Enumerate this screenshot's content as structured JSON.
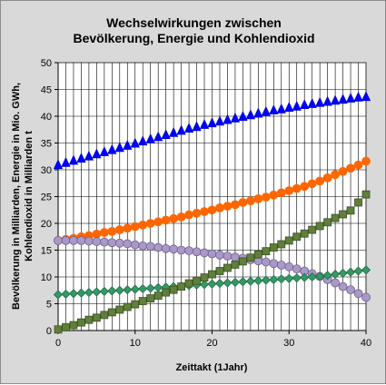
{
  "chart_data": {
    "type": "scatter",
    "title_lines": [
      "Wechselwirkungen zwischen",
      "Bevölkerung, Energie und Kohlendioxid"
    ],
    "xlabel": "Zeittakt (1Jahr)",
    "ylabel_lines": [
      "Bevölkerung in Milliarden, Energie in Mio. GWh,",
      "Kohlendioxid in Milliarden t"
    ],
    "xlim": [
      0,
      40
    ],
    "ylim": [
      0,
      50
    ],
    "xticks": [
      0,
      10,
      20,
      30,
      40
    ],
    "yticks": [
      0,
      5,
      10,
      15,
      20,
      25,
      30,
      35,
      40,
      45,
      50
    ],
    "grid": true,
    "legend": "none",
    "x": {
      "start": 0,
      "end": 40,
      "step": 1
    },
    "series": [
      {
        "marker": "triangle",
        "color": "#0000ff",
        "stroke": "#0000cc",
        "values": [
          30.9,
          31.3,
          31.7,
          32.1,
          32.5,
          32.9,
          33.3,
          33.7,
          34.1,
          34.5,
          34.9,
          35.3,
          35.7,
          36.1,
          36.5,
          36.9,
          37.3,
          37.7,
          38.0,
          38.4,
          38.7,
          39.0,
          39.3,
          39.6,
          39.9,
          40.2,
          40.5,
          40.8,
          41.1,
          41.3,
          41.6,
          41.8,
          42.1,
          42.3,
          42.5,
          42.7,
          42.9,
          43.1,
          43.3,
          43.5,
          43.6
        ]
      },
      {
        "marker": "circle",
        "color": "#ff6600",
        "stroke": "#ff6600",
        "values": [
          16.8,
          17.0,
          17.2,
          17.5,
          17.7,
          18.0,
          18.3,
          18.5,
          18.8,
          19.1,
          19.4,
          19.7,
          20.0,
          20.3,
          20.6,
          20.9,
          21.2,
          21.6,
          21.9,
          22.2,
          22.5,
          22.9,
          23.2,
          23.5,
          23.9,
          24.2,
          24.6,
          24.9,
          25.3,
          25.7,
          26.1,
          26.5,
          26.9,
          27.4,
          27.9,
          28.5,
          29.1,
          29.7,
          30.3,
          30.9,
          31.6
        ]
      },
      {
        "marker": "circle",
        "color": "#a899c8",
        "stroke": "#6f5f8a",
        "values": [
          16.8,
          16.8,
          16.8,
          16.8,
          16.7,
          16.6,
          16.5,
          16.4,
          16.3,
          16.2,
          16.0,
          15.8,
          15.7,
          15.5,
          15.3,
          15.2,
          15.0,
          14.9,
          14.7,
          14.5,
          14.3,
          14.1,
          13.9,
          13.7,
          13.5,
          13.2,
          13.0,
          12.8,
          12.5,
          12.2,
          11.9,
          11.5,
          11.1,
          10.6,
          10.1,
          9.5,
          8.9,
          8.2,
          7.6,
          6.9,
          6.2
        ]
      },
      {
        "marker": "diamond",
        "color": "#339966",
        "stroke": "#1f6b42",
        "values": [
          6.7,
          6.8,
          6.9,
          7.0,
          7.1,
          7.2,
          7.3,
          7.4,
          7.5,
          7.6,
          7.7,
          7.8,
          7.9,
          8.0,
          8.1,
          8.2,
          8.3,
          8.4,
          8.5,
          8.6,
          8.7,
          8.8,
          8.9,
          9.0,
          9.1,
          9.2,
          9.3,
          9.4,
          9.5,
          9.6,
          9.7,
          9.8,
          9.9,
          10.0,
          10.1,
          10.3,
          10.5,
          10.7,
          10.9,
          11.1,
          11.3
        ]
      },
      {
        "marker": "square",
        "color": "#5f7f3a",
        "stroke": "#3a4f24",
        "values": [
          0.2,
          0.6,
          1.0,
          1.5,
          2.0,
          2.4,
          2.9,
          3.4,
          3.9,
          4.4,
          4.9,
          5.5,
          6.0,
          6.5,
          7.1,
          7.6,
          8.2,
          8.8,
          9.3,
          9.9,
          10.5,
          11.1,
          11.7,
          12.3,
          12.9,
          13.6,
          14.2,
          14.8,
          15.5,
          16.1,
          16.8,
          17.5,
          18.1,
          18.8,
          19.5,
          20.2,
          21.0,
          21.7,
          22.4,
          23.9,
          25.4
        ]
      }
    ]
  }
}
